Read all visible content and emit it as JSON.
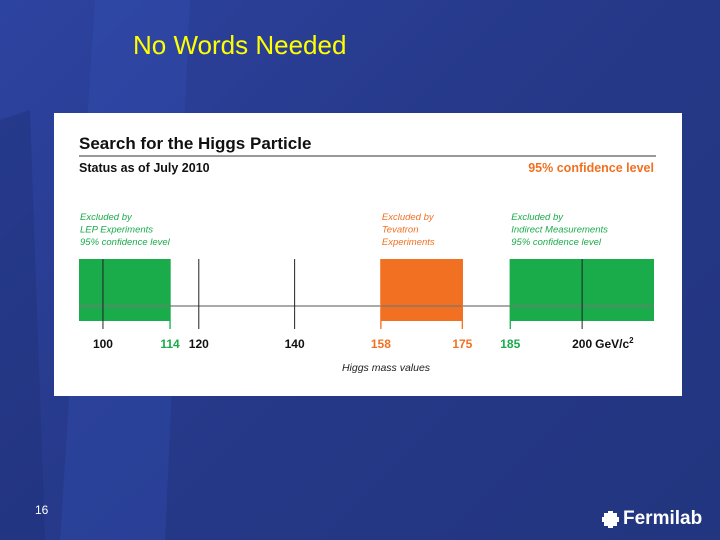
{
  "slide": {
    "title": "No Words Needed",
    "page_number": "16",
    "logo_text": "Fermilab"
  },
  "figure": {
    "heading": "Search for the Higgs Particle",
    "status": "Status as of July 2010",
    "confidence": "95% confidence level",
    "axis_title": "Higgs mass values",
    "unit_label": "GeV/c",
    "unit_exponent": "2",
    "regions": [
      {
        "name": "lep",
        "lines": [
          "Excluded by",
          "LEP Experiments",
          "95% confidence level"
        ],
        "from": 95,
        "to": 114,
        "color": "#1aab4b"
      },
      {
        "name": "tevatron",
        "lines": [
          "Excluded by",
          "Tevatron",
          "Experiments"
        ],
        "from": 158,
        "to": 175,
        "color": "#f27022"
      },
      {
        "name": "indirect",
        "lines": [
          "Excluded by",
          "Indirect Measurements",
          "95% confidence level"
        ],
        "from": 185,
        "to": 215,
        "color": "#1aab4b"
      }
    ],
    "ticks": [
      {
        "value": 100,
        "label": "100",
        "color": "#111111"
      },
      {
        "value": 114,
        "label": "114",
        "color": "#1aab4b"
      },
      {
        "value": 120,
        "label": "120",
        "color": "#111111"
      },
      {
        "value": 140,
        "label": "140",
        "color": "#111111"
      },
      {
        "value": 158,
        "label": "158",
        "color": "#f27022"
      },
      {
        "value": 175,
        "label": "175",
        "color": "#f27022"
      },
      {
        "value": 185,
        "label": "185",
        "color": "#1aab4b"
      },
      {
        "value": 200,
        "label": "200",
        "color": "#111111"
      }
    ],
    "axis_range": [
      95,
      215
    ],
    "colors": {
      "green": "#1aab4b",
      "orange": "#f27022",
      "heading": "#111111",
      "accent": "#f27022"
    }
  }
}
